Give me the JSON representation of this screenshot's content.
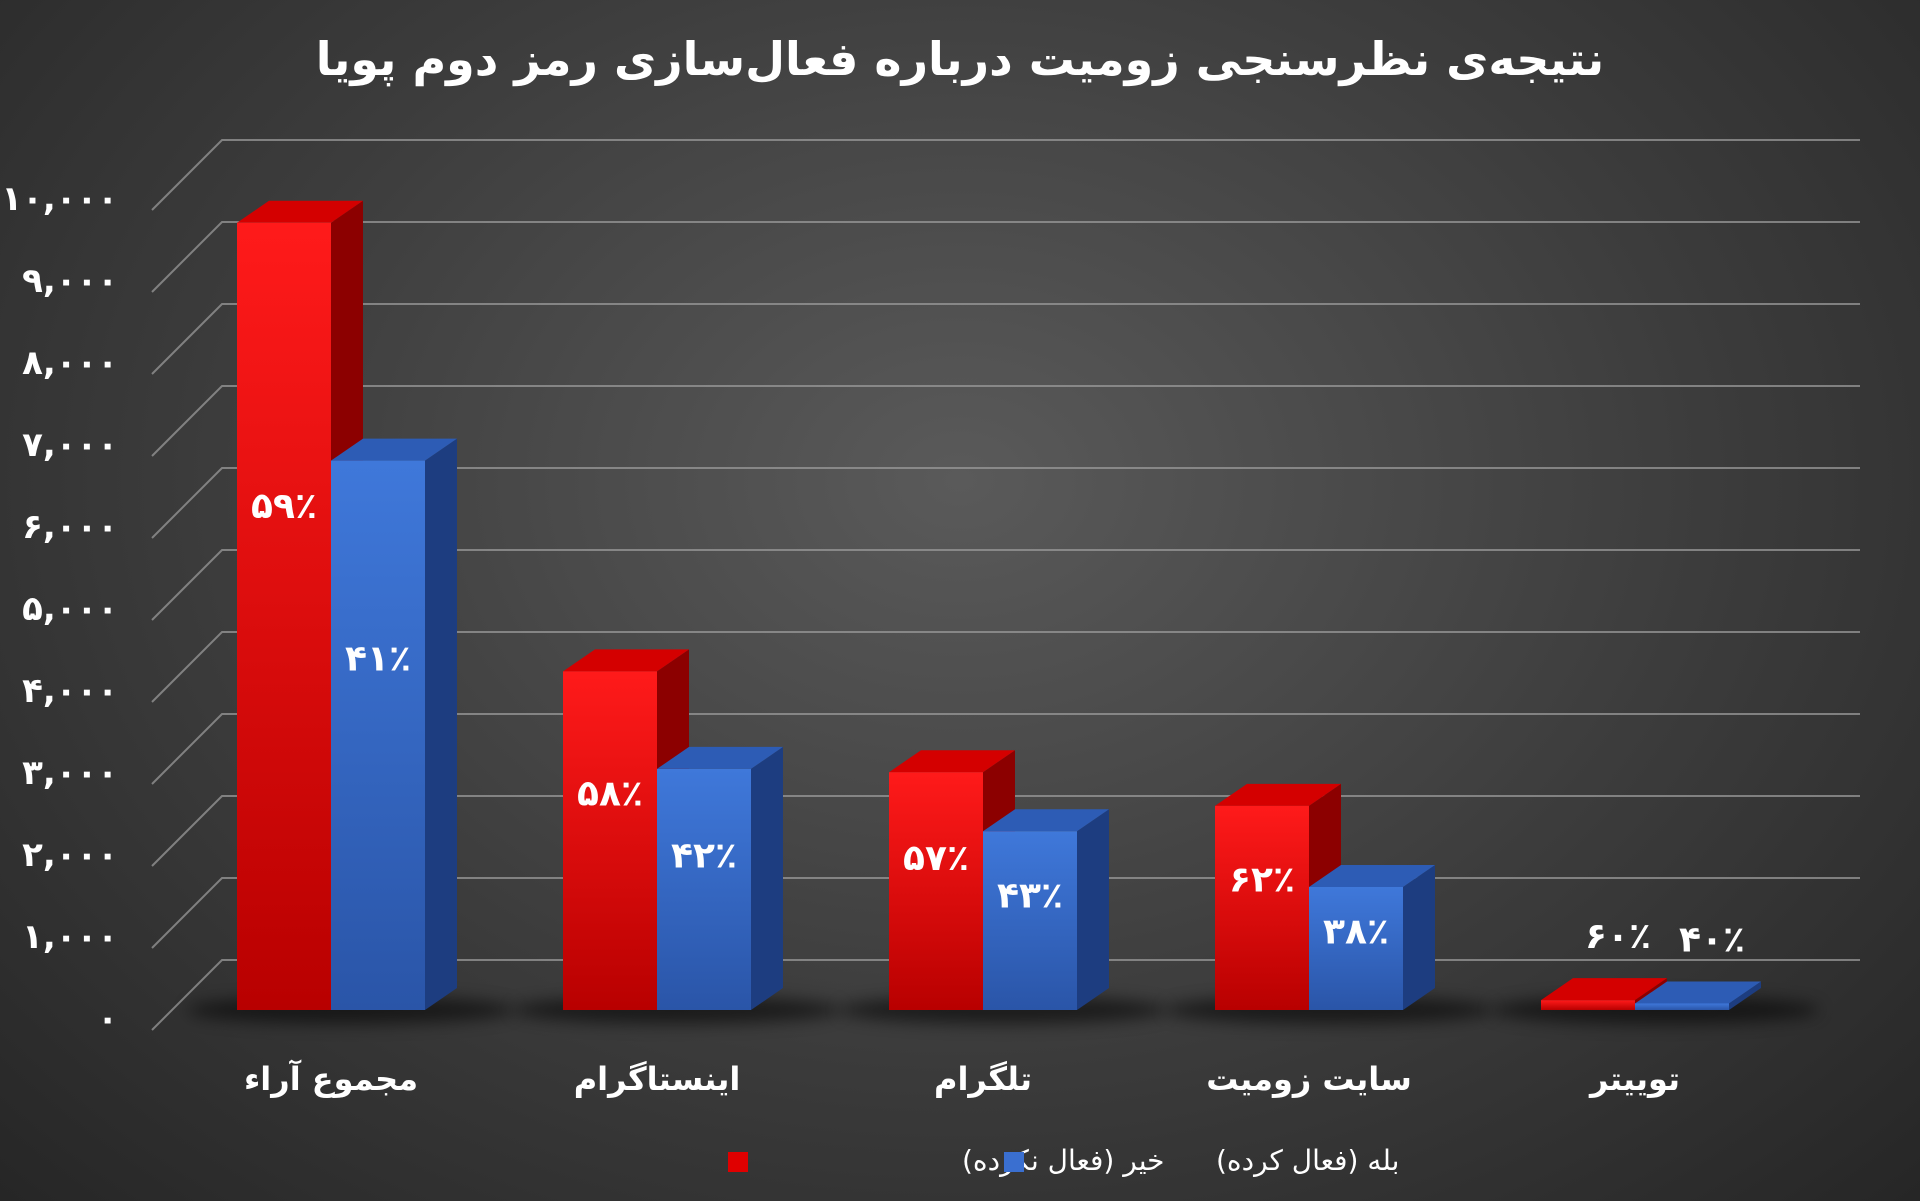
{
  "chart_data": {
    "type": "bar",
    "title": "نتیجه‌ی نظرسنجی زومیت درباره فعال‌سازی رمز دوم پویا",
    "xlabel": "",
    "ylabel": "",
    "ylim": [
      0,
      10000
    ],
    "yticks": [
      0,
      1000,
      2000,
      3000,
      4000,
      5000,
      6000,
      7000,
      8000,
      9000,
      10000
    ],
    "ytick_labels": [
      "۰",
      "۱,۰۰۰",
      "۲,۰۰۰",
      "۳,۰۰۰",
      "۴,۰۰۰",
      "۵,۰۰۰",
      "۶,۰۰۰",
      "۷,۰۰۰",
      "۸,۰۰۰",
      "۹,۰۰۰",
      "۱۰,۰۰۰"
    ],
    "categories": [
      "مجموع آراء",
      "اینستاگرام",
      "تلگرام",
      "سایت زومیت",
      "توییتر"
    ],
    "series": [
      {
        "name": "خیر (فعال نکرده)",
        "color": "#e00000",
        "values": [
          9600,
          4130,
          2900,
          2490,
          120
        ],
        "labels": [
          "۵۹٪",
          "۵۸٪",
          "۵۷٪",
          "۶۲٪",
          "۶۰٪"
        ]
      },
      {
        "name": "بله (فعال کرده)",
        "color": "#3a6fd0",
        "values": [
          6700,
          2940,
          2180,
          1500,
          80
        ],
        "labels": [
          "۴۱٪",
          "۴۲٪",
          "۴۳٪",
          "۳۸٪",
          "۴۰٪"
        ]
      }
    ],
    "grid": true,
    "legend": "bottom"
  }
}
